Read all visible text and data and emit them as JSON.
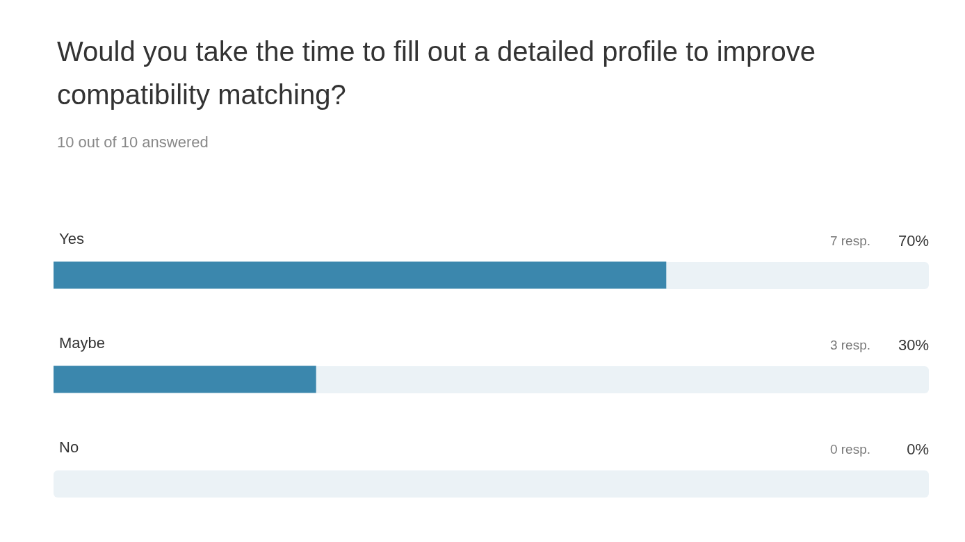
{
  "chart_data": {
    "type": "bar",
    "orientation": "horizontal",
    "title": "Would you take the time to fill out a detailed profile to improve compatibility matching?",
    "subtitle": "10 out of 10 answered",
    "categories": [
      "Yes",
      "Maybe",
      "No"
    ],
    "series": [
      {
        "color": "#3b87ad",
        "values": [
          70,
          30,
          0
        ],
        "value_labels": [
          "70%",
          "30%",
          "0%"
        ]
      }
    ],
    "annotations": [
      "7 resp.",
      "3 resp.",
      "0 resp."
    ],
    "xlim": [
      0,
      100
    ]
  }
}
